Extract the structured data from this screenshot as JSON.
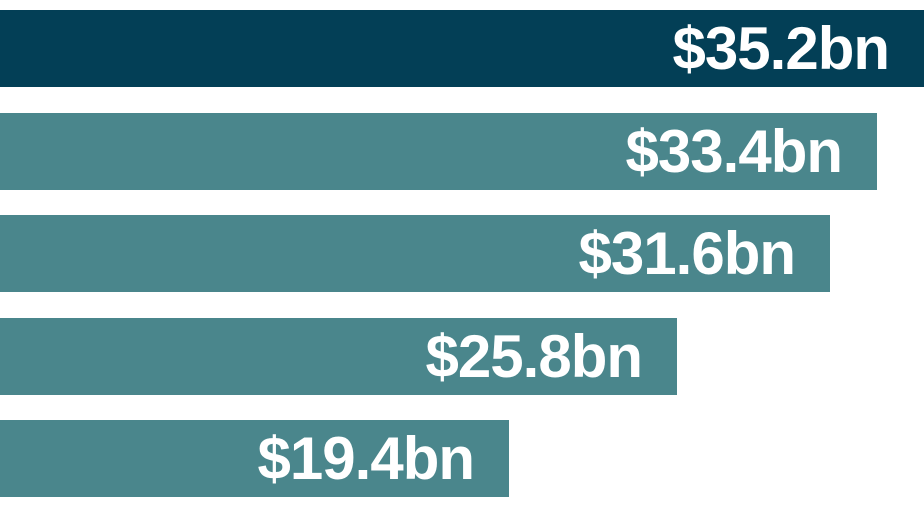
{
  "chart_data": {
    "type": "bar",
    "orientation": "horizontal",
    "title": "",
    "xlabel": "",
    "ylabel": "",
    "xlim": [
      0,
      35.2
    ],
    "values": [
      35.2,
      33.4,
      31.6,
      25.8,
      19.4
    ],
    "labels": [
      "$35.2bn",
      "$33.4bn",
      "$31.6bn",
      "$25.8bn",
      "$19.4bn"
    ],
    "grid": false,
    "legend": "none",
    "colors": {
      "highlight": "#033f56",
      "default": "#4a868c"
    }
  }
}
